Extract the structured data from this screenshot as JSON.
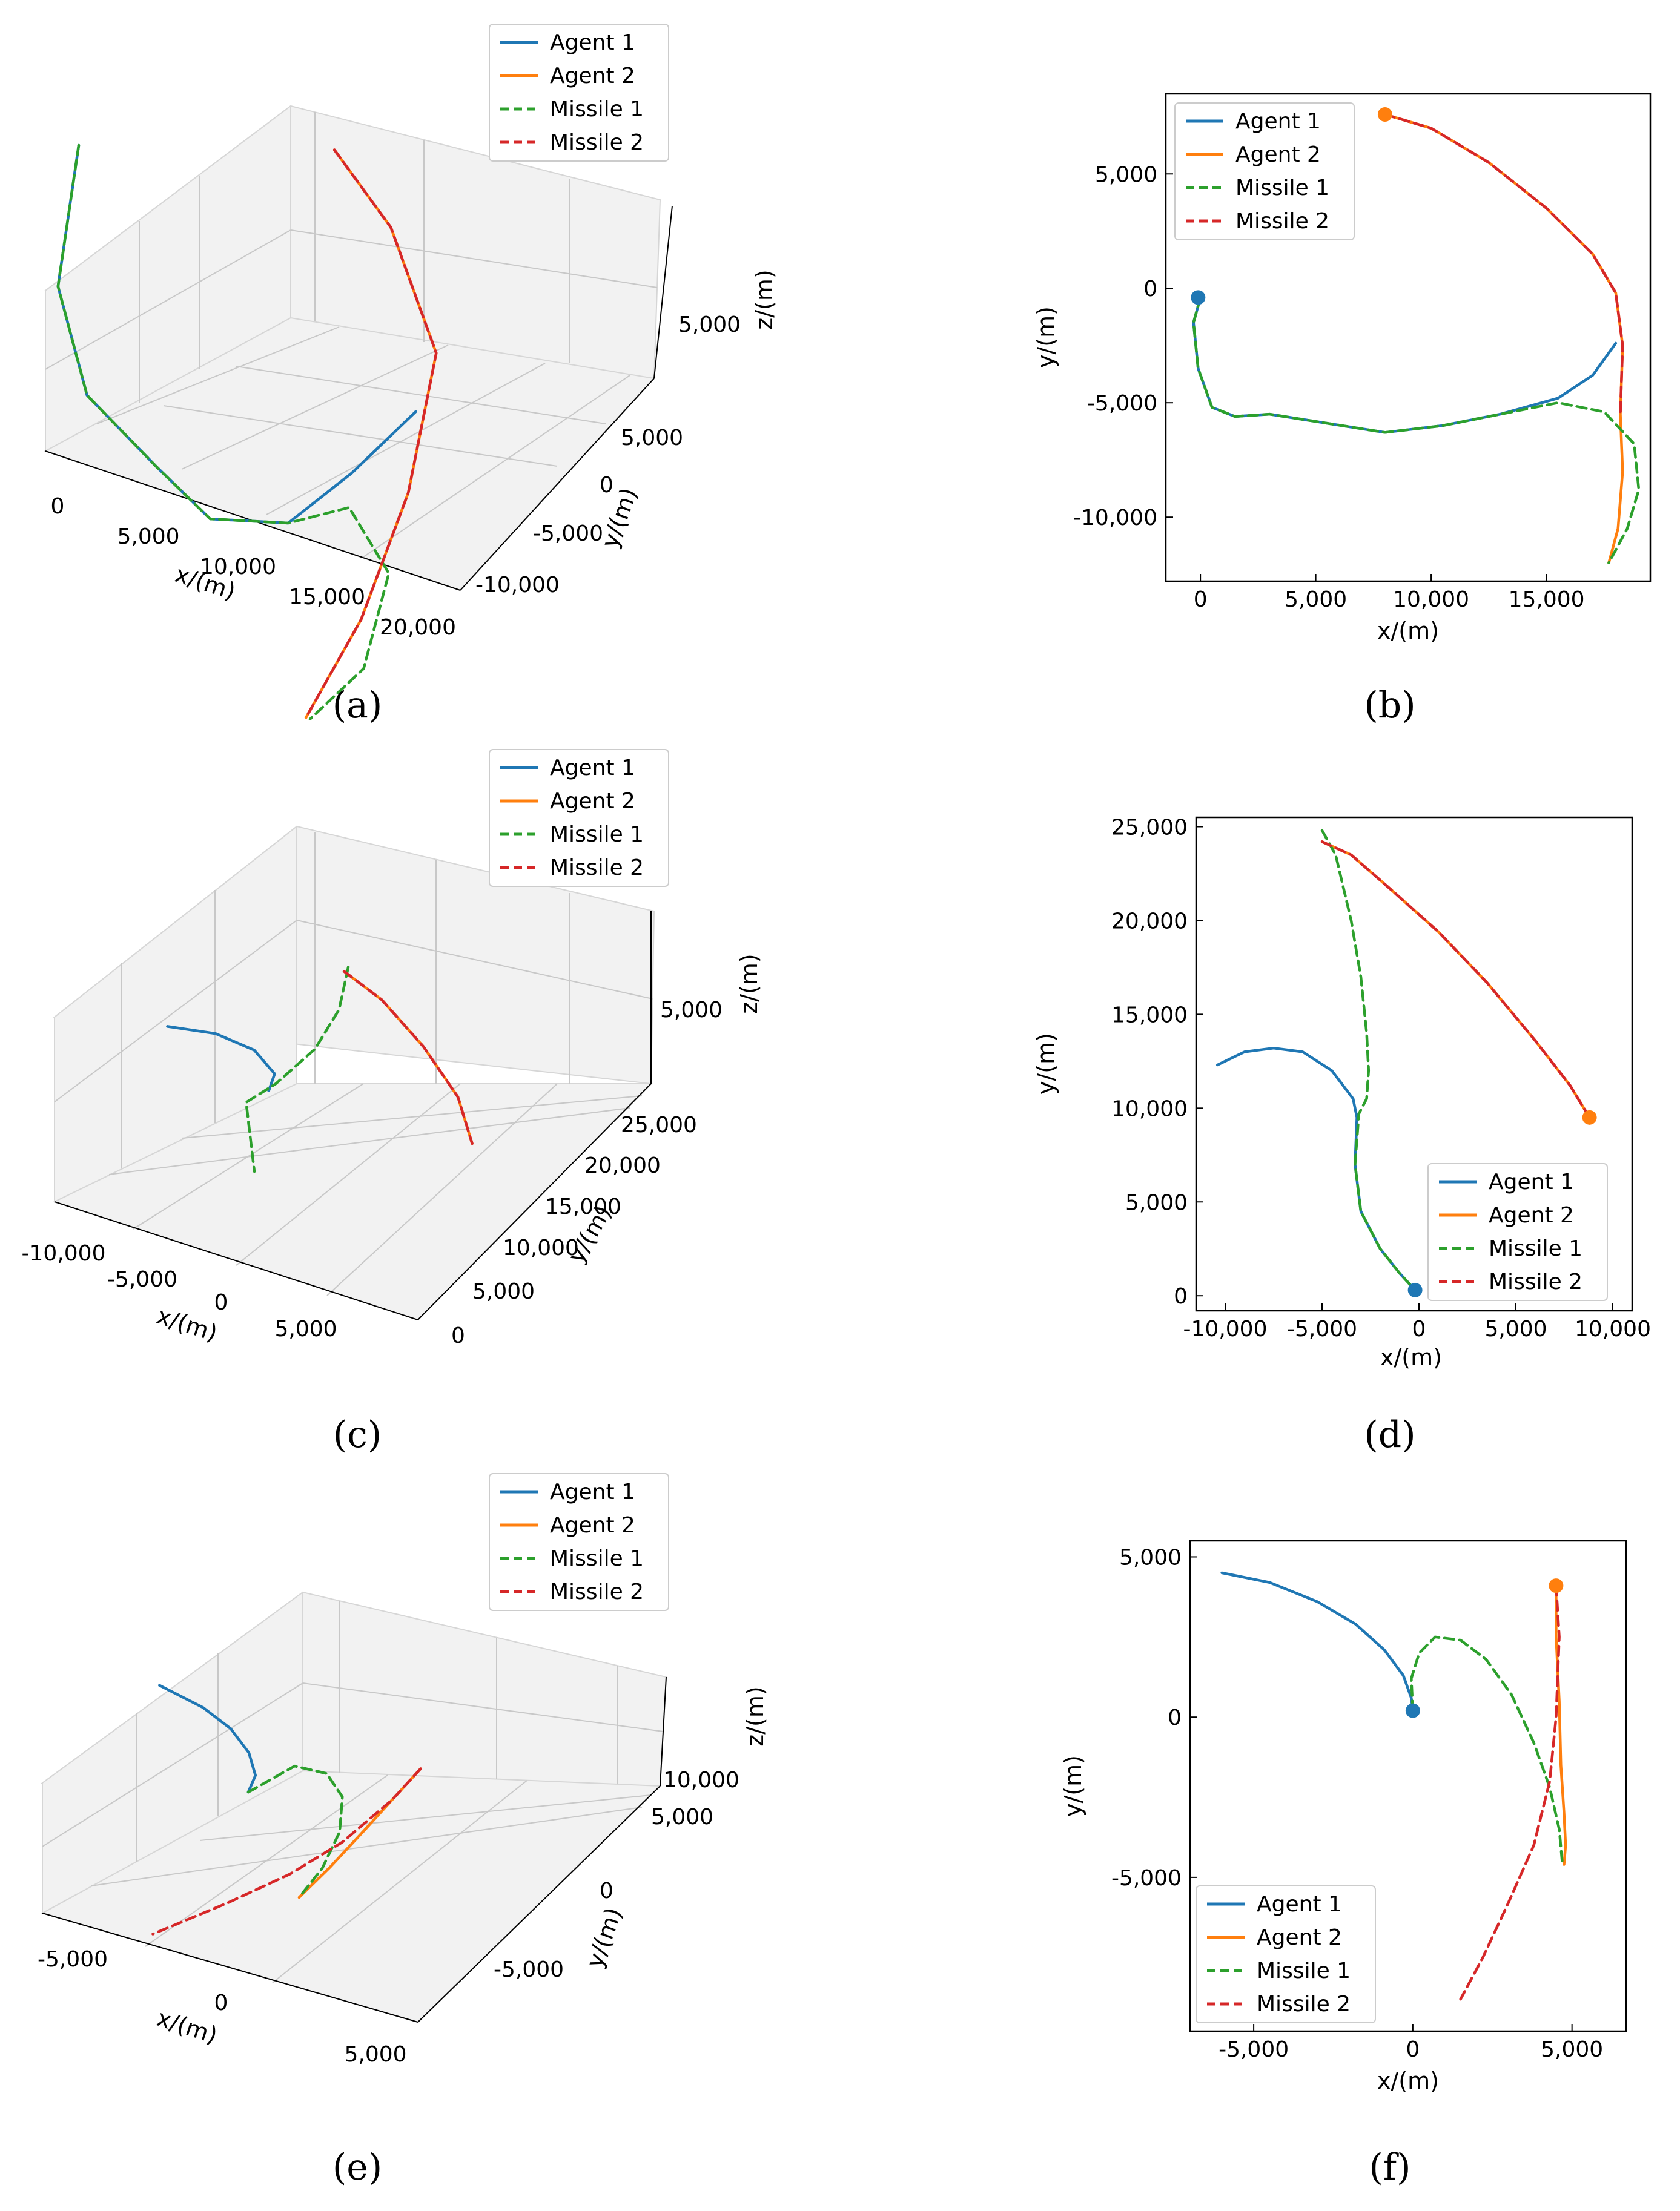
{
  "colors": {
    "agent1": "#1f77b4",
    "agent2": "#ff7f0e",
    "missile1": "#2ca02c",
    "missile2": "#d62728"
  },
  "legend_labels": [
    "Agent 1",
    "Agent 2",
    "Missile 1",
    "Missile 2"
  ],
  "chart_data": [
    {
      "id": "a",
      "type": "line",
      "projection": "3d",
      "caption": "(a)",
      "xlabel": "x/(m)",
      "ylabel": "y/(m)",
      "zlabel": "z/(m)",
      "xticks": [
        "0",
        "5,000",
        "10,000",
        "15,000",
        "20,000"
      ],
      "yticks": [
        "-10,000",
        "-5,000",
        "0",
        "5,000"
      ],
      "zticks": [
        "5,000"
      ],
      "legend_position": "top-center",
      "series": [
        {
          "name": "Agent 1",
          "x": [
            0,
            1000,
            3500,
            7000,
            10000,
            13500,
            16000,
            17800
          ],
          "y": [
            0,
            -3500,
            -5400,
            -5600,
            -6300,
            -5800,
            -4800,
            -2500
          ],
          "z": [
            7000,
            5000,
            3500,
            2500,
            2000,
            2300,
            3500,
            4500
          ]
        },
        {
          "name": "Agent 2",
          "x": [
            8000,
            12000,
            16500,
            18300,
            18300,
            17800
          ],
          "y": [
            7700,
            5500,
            1500,
            -4000,
            -8000,
            -11800
          ],
          "z": [
            6000,
            5500,
            4500,
            3200,
            1500,
            300
          ]
        },
        {
          "name": "Missile 1",
          "x": [
            0,
            1000,
            3500,
            7000,
            10000,
            13500,
            16000,
            18500,
            19000,
            18000
          ],
          "y": [
            0,
            -3500,
            -5400,
            -5600,
            -6300,
            -5800,
            -5000,
            -6000,
            -9000,
            -11800
          ],
          "z": [
            7000,
            5000,
            3500,
            2500,
            2000,
            2300,
            2800,
            2000,
            800,
            300
          ]
        },
        {
          "name": "Missile 2",
          "x": [
            8000,
            12000,
            16500,
            18300,
            18300,
            17800
          ],
          "y": [
            7700,
            5500,
            1500,
            -4000,
            -8000,
            -11800
          ],
          "z": [
            6000,
            5500,
            4500,
            3200,
            1500,
            300
          ]
        }
      ]
    },
    {
      "id": "b",
      "type": "line",
      "caption": "(b)",
      "xlabel": "x/(m)",
      "ylabel": "y/(m)",
      "xlim": [
        -1500,
        19500
      ],
      "ylim": [
        -12800,
        8500
      ],
      "xticks": [
        0,
        5000,
        10000,
        15000
      ],
      "xtick_labels": [
        "0",
        "5,000",
        "10,000",
        "15,000"
      ],
      "yticks": [
        5000,
        0,
        -5000,
        -10000
      ],
      "ytick_labels": [
        "5,000",
        "0",
        "-5,000",
        "-10,000"
      ],
      "legend_position": "top-left",
      "series": [
        {
          "name": "Agent 1",
          "x": [
            0,
            -300,
            -100,
            500,
            1500,
            3000,
            5500,
            8000,
            10500,
            13000,
            15500,
            17000,
            18000
          ],
          "y": [
            -400,
            -1500,
            -3500,
            -5200,
            -5600,
            -5500,
            -5900,
            -6300,
            -6000,
            -5500,
            -4800,
            -3800,
            -2400
          ]
        },
        {
          "name": "Agent 2",
          "x": [
            8000,
            10000,
            12500,
            15000,
            17000,
            18000,
            18300,
            18200,
            18300,
            18100,
            17700
          ],
          "y": [
            7600,
            7000,
            5500,
            3500,
            1500,
            -200,
            -2500,
            -5500,
            -8000,
            -10500,
            -12000
          ]
        },
        {
          "name": "Missile 1",
          "x": [
            0,
            -300,
            -100,
            500,
            1500,
            3000,
            5500,
            8000,
            10500,
            13000,
            15500,
            17500,
            18800,
            19000,
            18500,
            17700
          ],
          "y": [
            -400,
            -1500,
            -3500,
            -5200,
            -5600,
            -5500,
            -5900,
            -6300,
            -6000,
            -5500,
            -5000,
            -5400,
            -6800,
            -8800,
            -10500,
            -12000
          ]
        },
        {
          "name": "Missile 2",
          "x": [
            8000,
            10000,
            12500,
            15000,
            17000,
            18000,
            18300,
            18200
          ],
          "y": [
            7600,
            7000,
            5500,
            3500,
            1500,
            -200,
            -2500,
            -5500
          ]
        }
      ],
      "start_markers": [
        {
          "series": "Agent 1",
          "x": -100,
          "y": -400
        },
        {
          "series": "Agent 2",
          "x": 8000,
          "y": 7600
        }
      ]
    },
    {
      "id": "c",
      "type": "line",
      "projection": "3d",
      "caption": "(c)",
      "xlabel": "x/(m)",
      "ylabel": "y/(m)",
      "zlabel": "z/(m)",
      "xticks": [
        "-10,000",
        "-5,000",
        "0",
        "5,000"
      ],
      "yticks": [
        "0",
        "5,000",
        "10,000",
        "15,000",
        "20,000",
        "25,000"
      ],
      "zticks": [
        "5,000"
      ],
      "legend_position": "top-center",
      "series": [
        {
          "name": "Agent 1",
          "x": [
            -10500,
            -8000,
            -5500,
            -3500,
            -3000
          ],
          "y": [
            12300,
            13200,
            12800,
            11000,
            9000
          ],
          "z": [
            5000,
            5000,
            5000,
            5000,
            5000
          ]
        },
        {
          "name": "Agent 2",
          "x": [
            -5000,
            -2000,
            2000,
            6000,
            9000
          ],
          "y": [
            24200,
            22500,
            19000,
            14500,
            9500
          ],
          "z": [
            5000,
            5000,
            5000,
            5200,
            5500
          ]
        },
        {
          "name": "Missile 1",
          "x": [
            -5000,
            -3500,
            -2800,
            -3000,
            -3500,
            0
          ],
          "y": [
            24800,
            20000,
            15000,
            10000,
            7000,
            0
          ],
          "z": [
            5000,
            5000,
            5000,
            5000,
            5000,
            5000
          ]
        },
        {
          "name": "Missile 2",
          "x": [
            -5000,
            -2000,
            2000,
            6000,
            9000
          ],
          "y": [
            24200,
            22500,
            19000,
            14500,
            9500
          ],
          "z": [
            5000,
            5000,
            5000,
            5200,
            5500
          ]
        }
      ]
    },
    {
      "id": "d",
      "type": "line",
      "caption": "(d)",
      "xlabel": "x/(m)",
      "ylabel": "y/(m)",
      "xlim": [
        -11500,
        11000
      ],
      "ylim": [
        -800,
        25500
      ],
      "xticks": [
        -10000,
        -5000,
        0,
        5000,
        10000
      ],
      "xtick_labels": [
        "-10,000",
        "-5,000",
        "0",
        "5,000",
        "10,000"
      ],
      "yticks": [
        0,
        5000,
        10000,
        15000,
        20000,
        25000
      ],
      "ytick_labels": [
        "0",
        "5,000",
        "10,000",
        "15,000",
        "20,000",
        "25,000"
      ],
      "legend_position": "bottom-right",
      "series": [
        {
          "name": "Agent 1",
          "x": [
            -10400,
            -9000,
            -7500,
            -6000,
            -4500,
            -3400,
            -3200,
            -3300,
            -3000,
            -2000,
            -1000,
            -200
          ],
          "y": [
            12300,
            13000,
            13200,
            13000,
            12000,
            10500,
            9500,
            7000,
            4500,
            2500,
            1200,
            300
          ]
        },
        {
          "name": "Agent 2",
          "x": [
            -5000,
            -3500,
            -1500,
            1000,
            3500,
            6000,
            7800,
            8800
          ],
          "y": [
            24200,
            23500,
            21700,
            19400,
            16700,
            13600,
            11200,
            9500
          ]
        },
        {
          "name": "Missile 1",
          "x": [
            -5000,
            -4300,
            -3500,
            -3000,
            -2700,
            -2600,
            -2700,
            -3100,
            -3300,
            -3000,
            -2000,
            -1000,
            -200
          ],
          "y": [
            24800,
            23500,
            20000,
            17000,
            14000,
            12000,
            10500,
            9700,
            7000,
            4500,
            2500,
            1200,
            300
          ]
        },
        {
          "name": "Missile 2",
          "x": [
            -5000,
            -3500,
            -1500,
            1000,
            3500,
            6000,
            7800,
            8800
          ],
          "y": [
            24200,
            23500,
            21700,
            19400,
            16700,
            13600,
            11200,
            9500
          ]
        }
      ],
      "start_markers": [
        {
          "series": "Agent 1",
          "x": -200,
          "y": 300
        },
        {
          "series": "Agent 2",
          "x": 8800,
          "y": 9500
        }
      ]
    },
    {
      "id": "e",
      "type": "line",
      "projection": "3d",
      "caption": "(e)",
      "xlabel": "x/(m)",
      "ylabel": "y/(m)",
      "zlabel": "z/(m)",
      "xticks": [
        "-5,000",
        "0",
        "5,000"
      ],
      "yticks": [
        "-5,000",
        "0",
        "5,000"
      ],
      "zticks": [
        "10,000"
      ],
      "legend_position": "top-center",
      "series": [
        {
          "name": "Agent 1",
          "x": [
            -6000,
            -4000,
            -2500,
            -1200,
            -300,
            0
          ],
          "y": [
            4500,
            4000,
            3300,
            2300,
            1200,
            200
          ],
          "z": [
            10000,
            10000,
            10000,
            10000,
            10000,
            10000
          ]
        },
        {
          "name": "Agent 2",
          "x": [
            4500,
            4600,
            4700,
            4800,
            4800
          ],
          "y": [
            4100,
            2000,
            0,
            -2500,
            -4600
          ],
          "z": [
            10000,
            10000,
            10000,
            10000,
            10000
          ]
        },
        {
          "name": "Missile 1",
          "x": [
            0,
            600,
            1800,
            3000,
            4000,
            4600,
            4800
          ],
          "y": [
            200,
            2300,
            2400,
            1400,
            -500,
            -2700,
            -4600
          ],
          "z": [
            10000,
            10000,
            10000,
            10000,
            10000,
            10000,
            10000
          ]
        },
        {
          "name": "Missile 2",
          "x": [
            4500,
            4600,
            4400,
            3800,
            2800,
            1500
          ],
          "y": [
            4100,
            2000,
            -1000,
            -3500,
            -6000,
            -8800
          ],
          "z": [
            10000,
            10000,
            10000,
            10000,
            10000,
            10000
          ]
        }
      ]
    },
    {
      "id": "f",
      "type": "line",
      "caption": "(f)",
      "xlabel": "x/(m)",
      "ylabel": "y/(m)",
      "xlim": [
        -7000,
        6700
      ],
      "ylim": [
        -9800,
        5500
      ],
      "xticks": [
        -5000,
        0,
        5000
      ],
      "xtick_labels": [
        "-5,000",
        "0",
        "5,000"
      ],
      "yticks": [
        5000,
        0,
        -5000
      ],
      "ytick_labels": [
        "5,000",
        "0",
        "-5,000"
      ],
      "legend_position": "bottom-left",
      "series": [
        {
          "name": "Agent 1",
          "x": [
            -6000,
            -4500,
            -3000,
            -1800,
            -900,
            -300,
            -50,
            0
          ],
          "y": [
            4500,
            4200,
            3600,
            2900,
            2100,
            1300,
            600,
            200
          ]
        },
        {
          "name": "Agent 2",
          "x": [
            4500,
            4500,
            4600,
            4650,
            4750,
            4800,
            4750
          ],
          "y": [
            4100,
            2500,
            500,
            -1500,
            -3000,
            -4000,
            -4600
          ]
        },
        {
          "name": "Missile 1",
          "x": [
            0,
            -50,
            200,
            700,
            1500,
            2300,
            3100,
            3800,
            4300,
            4600,
            4700
          ],
          "y": [
            200,
            1200,
            2000,
            2500,
            2400,
            1800,
            700,
            -800,
            -2200,
            -3500,
            -4600
          ]
        },
        {
          "name": "Missile 2",
          "x": [
            4500,
            4600,
            4500,
            4300,
            3800,
            3000,
            2200,
            1500
          ],
          "y": [
            4100,
            2500,
            0,
            -2000,
            -4000,
            -5800,
            -7500,
            -8800
          ]
        }
      ],
      "start_markers": [
        {
          "series": "Agent 1",
          "x": 0,
          "y": 200
        },
        {
          "series": "Agent 2",
          "x": 4500,
          "y": 4100
        }
      ]
    }
  ]
}
